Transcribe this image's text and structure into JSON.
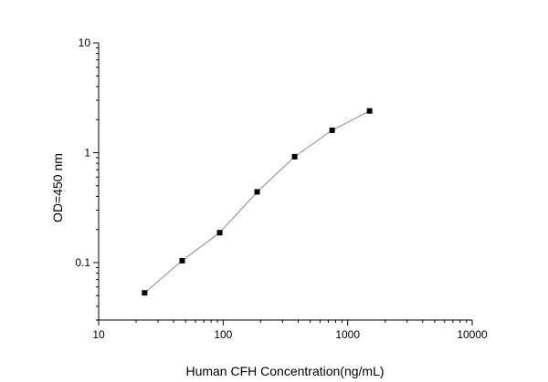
{
  "chart_data": {
    "type": "scatter",
    "xlabel": "Human CFH Concentration(ng/mL)",
    "ylabel": "OD=450 nm",
    "xscale": "log",
    "yscale": "log",
    "xlim": [
      10,
      10000
    ],
    "ylim": [
      0.03,
      10
    ],
    "xticks": [
      10,
      100,
      1000,
      10000
    ],
    "xtick_labels": [
      "10",
      "100",
      "1000",
      "10000"
    ],
    "yticks": [
      0.1,
      1,
      10
    ],
    "ytick_labels": [
      "0.1",
      "1",
      "10"
    ],
    "grid": false,
    "connect_points": true,
    "marker": "square",
    "colors": {
      "marker": "#000000",
      "line": "#8a8a8a",
      "axis": "#000000"
    },
    "series": [
      {
        "x": [
          23.4,
          46.9,
          93.8,
          187.5,
          375,
          750,
          1500
        ],
        "y": [
          0.053,
          0.104,
          0.187,
          0.44,
          0.92,
          1.6,
          2.4
        ]
      }
    ]
  }
}
